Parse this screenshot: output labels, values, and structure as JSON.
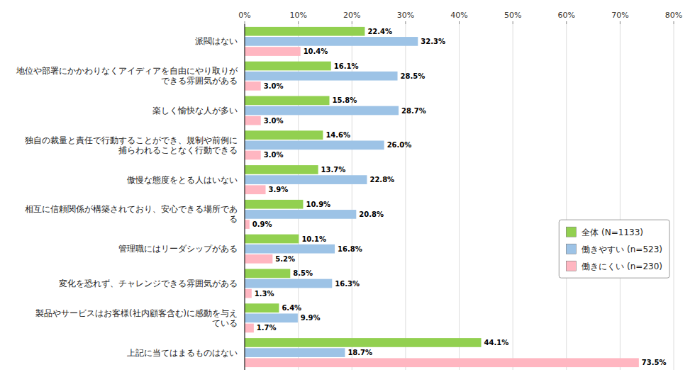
{
  "chart_data": {
    "type": "bar",
    "orientation": "horizontal",
    "categories": [
      "派閥はない",
      "地位や部署にかかわりなくアイディアを自由にやり取りが\nできる雰囲気がある",
      "楽しく愉快な人が多い",
      "独自の裁量と責任で行動することができ、規制や前例に\n捕らわれることなく行動できる",
      "傲慢な態度をとる人はいない",
      "相互に信頼関係が構築されており、安心できる場所であ\nる",
      "管理職にはリーダシップがある",
      "変化を恐れず、チャレンジできる雰囲気がある",
      "製品やサービスはお客様(社内顧客含む)に感動を与え\nている",
      "上記に当てはまるものはない"
    ],
    "series": [
      {
        "name": "全体 (N=1133)",
        "color": "#92D050",
        "values": [
          22.4,
          16.1,
          15.8,
          14.6,
          13.7,
          10.9,
          10.1,
          8.5,
          6.4,
          44.1
        ],
        "value_labels": [
          "22.4%",
          "16.1%",
          "15.8%",
          "14.6%",
          "13.7%",
          "10.9%",
          "10.1%",
          "8.5%",
          "6.4%",
          "44.1%"
        ]
      },
      {
        "name": "働きやすい (n=523)",
        "color": "#9DC3E6",
        "values": [
          32.3,
          28.5,
          28.7,
          26.0,
          22.8,
          20.8,
          16.8,
          16.3,
          9.9,
          18.7
        ],
        "value_labels": [
          "32.3%",
          "28.5%",
          "28.7%",
          "26.0%",
          "22.8%",
          "20.8%",
          "16.8%",
          "16.3%",
          "9.9%",
          "18.7%"
        ]
      },
      {
        "name": "働きにくい (n=230)",
        "color": "#FFB6C1",
        "values": [
          10.4,
          3.0,
          3.0,
          3.0,
          3.9,
          0.9,
          5.2,
          1.3,
          1.7,
          73.5
        ],
        "value_labels": [
          "10.4%",
          "3.0%",
          "3.0%",
          "3.0%",
          "3.9%",
          "0.9%",
          "5.2%",
          "1.3%",
          "1.7%",
          "73.5%"
        ]
      }
    ],
    "xlim": [
      0,
      80
    ],
    "xticks": [
      {
        "value": 0,
        "label": "0%"
      },
      {
        "value": 10,
        "label": "10%"
      },
      {
        "value": 20,
        "label": "20%"
      },
      {
        "value": 30,
        "label": "30%"
      },
      {
        "value": 40,
        "label": "40%"
      },
      {
        "value": 50,
        "label": "50%"
      },
      {
        "value": 60,
        "label": "60%"
      },
      {
        "value": 70,
        "label": "70%"
      },
      {
        "value": 80,
        "label": "80%"
      }
    ],
    "grid": true,
    "legend": "right",
    "data_labels": true
  }
}
